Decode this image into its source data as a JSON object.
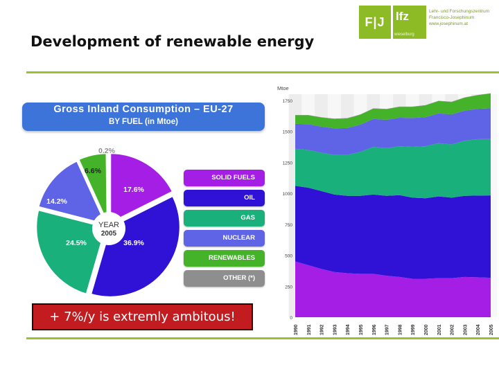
{
  "slide": {
    "title": "Development of renewable energy",
    "callout": "+ 7%/y is extremly ambitous!"
  },
  "logo": {
    "mark": "F|J",
    "lfz": "lfz",
    "lfz_sub": "wieselburg",
    "line1": "Lehr- und Forschungszentrum",
    "line2": "Francisco-Josephinum",
    "line3": "www.josephinum.at"
  },
  "colors": {
    "accent_green": "#9ac22f",
    "banner_blue": "#3d74d9",
    "callout_red": "#c21c20"
  },
  "chart_data": [
    {
      "type": "pie",
      "title": "Gross Inland Consumption – EU-27",
      "subtitle": "BY FUEL (in Mtoe)",
      "center_label": [
        "YEAR",
        "2005"
      ],
      "slices": [
        {
          "name": "SOLID FUELS",
          "value": 17.6,
          "label": "17.6%",
          "color": "#a51ee6"
        },
        {
          "name": "OIL",
          "value": 36.9,
          "label": "36.9%",
          "color": "#2f12d6"
        },
        {
          "name": "GAS",
          "value": 24.5,
          "label": "24.5%",
          "color": "#1ab07c"
        },
        {
          "name": "NUCLEAR",
          "value": 14.2,
          "label": "14.2%",
          "color": "#5f63e6"
        },
        {
          "name": "RENEWABLES",
          "value": 6.6,
          "label": "6.6%",
          "color": "#44b32a"
        },
        {
          "name": "OTHER (*)",
          "value": 0.2,
          "label": "0.2%",
          "color": "#8e8e8e"
        }
      ]
    },
    {
      "type": "area",
      "stacked": true,
      "ylabel": "Mtoe",
      "ylim": [
        0,
        1800
      ],
      "yticks": [
        0,
        250,
        500,
        750,
        1000,
        1250,
        1500,
        1750
      ],
      "x": [
        "1990",
        "1991",
        "1992",
        "1993",
        "1994",
        "1995",
        "1996",
        "1997",
        "1998",
        "1999",
        "2000",
        "2001",
        "2002",
        "2003",
        "2004",
        "2005"
      ],
      "series": [
        {
          "name": "SOLID FUELS",
          "color": "#a51ee6",
          "values": [
            450,
            420,
            390,
            365,
            355,
            350,
            350,
            335,
            325,
            310,
            310,
            315,
            315,
            325,
            322,
            318
          ]
        },
        {
          "name": "OIL",
          "color": "#2f12d6",
          "values": [
            610,
            625,
            628,
            625,
            625,
            630,
            640,
            645,
            660,
            655,
            650,
            660,
            650,
            655,
            660,
            665
          ]
        },
        {
          "name": "GAS",
          "color": "#1ab07c",
          "values": [
            300,
            305,
            310,
            320,
            330,
            355,
            385,
            385,
            395,
            410,
            420,
            430,
            430,
            445,
            455,
            455
          ]
        },
        {
          "name": "NUCLEAR",
          "color": "#5f63e6",
          "values": [
            200,
            208,
            210,
            215,
            217,
            220,
            225,
            228,
            230,
            233,
            235,
            240,
            242,
            242,
            245,
            248
          ]
        },
        {
          "name": "RENEWABLES",
          "color": "#44b32a",
          "values": [
            70,
            72,
            74,
            76,
            78,
            80,
            84,
            86,
            88,
            90,
            95,
            100,
            100,
            105,
            110,
            120
          ]
        },
        {
          "name": "OTHER",
          "color": "#8e8e8e",
          "values": [
            2,
            2,
            2,
            2,
            2,
            2,
            2,
            2,
            2,
            2,
            2,
            2,
            2,
            2,
            2,
            2
          ]
        }
      ]
    }
  ]
}
